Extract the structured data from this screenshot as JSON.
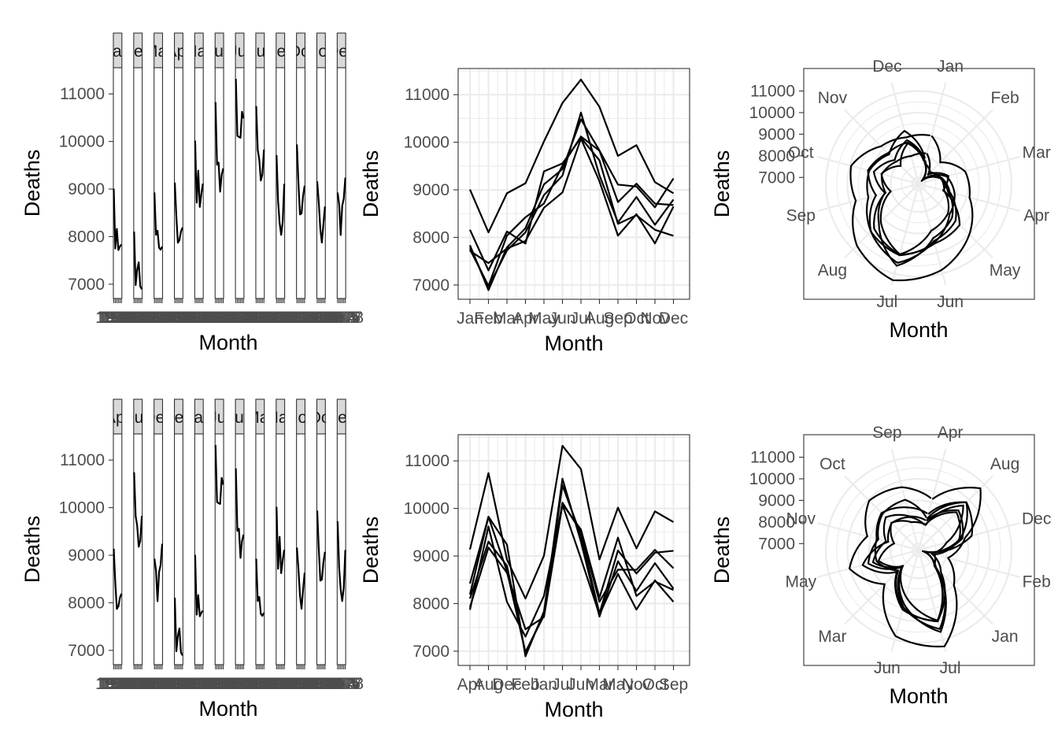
{
  "chart_data": [
    {
      "type": "line",
      "variant": "faceted-by-month",
      "ylabel": "Deaths",
      "xlabel": "Month",
      "ylim": [
        6700,
        11550
      ],
      "yticks": [
        7000,
        8000,
        9000,
        10000,
        11000
      ],
      "facets": [
        "Jan",
        "Feb",
        "Mar",
        "Apr",
        "May",
        "Jun",
        "Jul",
        "Aug",
        "Sep",
        "Oct",
        "Nov",
        "Dec"
      ],
      "x": [
        1973,
        1974,
        1975,
        1976,
        1977,
        1978
      ],
      "x_tick_labels": [
        "1973",
        "1974",
        "1975",
        "1976",
        "1977",
        "1978"
      ],
      "series": [
        {
          "values": [
            9007,
            7750,
            8162,
            7717,
            7792,
            7836
          ]
        },
        {
          "values": [
            8106,
            6981,
            7306,
            7461,
            6957,
            6892
          ]
        },
        {
          "values": [
            8928,
            8038,
            8124,
            7767,
            7726,
            7791
          ]
        },
        {
          "values": [
            9137,
            8422,
            7870,
            7925,
            8106,
            8192
          ]
        },
        {
          "values": [
            10017,
            8714,
            9387,
            8623,
            8890,
            9115
          ]
        },
        {
          "values": [
            10826,
            9512,
            9556,
            8945,
            9299,
            9434
          ]
        },
        {
          "values": [
            11317,
            10120,
            10093,
            10078,
            10625,
            10484
          ]
        },
        {
          "values": [
            10744,
            9823,
            9620,
            9179,
            9302,
            9827
          ]
        },
        {
          "values": [
            9713,
            8743,
            8285,
            8037,
            8314,
            9110
          ]
        },
        {
          "values": [
            9938,
            9129,
            8466,
            8488,
            8850,
            9070
          ]
        },
        {
          "values": [
            9161,
            8710,
            8160,
            7874,
            8265,
            8633
          ]
        },
        {
          "values": [
            8927,
            8680,
            8034,
            8647,
            8796,
            9240
          ]
        }
      ]
    },
    {
      "type": "line",
      "variant": "seasonal",
      "ylabel": "Deaths",
      "xlabel": "Month",
      "ylim": [
        6700,
        11550
      ],
      "yticks": [
        7000,
        8000,
        9000,
        10000,
        11000
      ],
      "categories": [
        "Jan",
        "Feb",
        "Mar",
        "Apr",
        "May",
        "Jun",
        "Jul",
        "Aug",
        "Sep",
        "Oct",
        "Nov",
        "Dec"
      ],
      "series": [
        {
          "values": [
            9007,
            8106,
            8928,
            9137,
            10017,
            10826,
            11317,
            10744,
            9713,
            9938,
            9161,
            8927
          ]
        },
        {
          "values": [
            7750,
            6981,
            8038,
            8422,
            8714,
            9512,
            10120,
            9823,
            8743,
            9129,
            8710,
            8680
          ]
        },
        {
          "values": [
            8162,
            7306,
            8124,
            7870,
            9387,
            9556,
            10093,
            9620,
            8285,
            8466,
            8160,
            8034
          ]
        },
        {
          "values": [
            7717,
            7461,
            7767,
            7925,
            8623,
            8945,
            10078,
            9179,
            8037,
            8488,
            7874,
            8647
          ]
        },
        {
          "values": [
            7792,
            6957,
            7726,
            8106,
            8890,
            9299,
            10625,
            9302,
            8314,
            8850,
            8265,
            8796
          ]
        },
        {
          "values": [
            7836,
            6892,
            7791,
            8192,
            9115,
            9434,
            10484,
            9827,
            9110,
            9070,
            8633,
            9240
          ]
        }
      ]
    },
    {
      "type": "line",
      "variant": "polar-seasonal",
      "ylabel": "Deaths",
      "xlabel": "Month",
      "yticks": [
        7000,
        8000,
        9000,
        10000,
        11000
      ],
      "categories": [
        "Jan",
        "Feb",
        "Mar",
        "Apr",
        "May",
        "Jun",
        "Jul",
        "Aug",
        "Sep",
        "Oct",
        "Nov",
        "Dec"
      ]
    },
    {
      "type": "line",
      "variant": "faceted-by-month-alphabetical",
      "ylabel": "Deaths",
      "xlabel": "Month",
      "ylim": [
        6700,
        11550
      ],
      "yticks": [
        7000,
        8000,
        9000,
        10000,
        11000
      ],
      "facets": [
        "Apr",
        "Aug",
        "Dec",
        "Feb",
        "Jan",
        "Jul",
        "Jun",
        "Mar",
        "May",
        "Nov",
        "Oct",
        "Sep"
      ],
      "x_tick_labels": [
        "1973",
        "1974",
        "1975",
        "1976",
        "1977",
        "1978"
      ]
    },
    {
      "type": "line",
      "variant": "seasonal-alphabetical",
      "ylabel": "Deaths",
      "xlabel": "Month",
      "ylim": [
        6700,
        11550
      ],
      "yticks": [
        7000,
        8000,
        9000,
        10000,
        11000
      ],
      "categories": [
        "Apr",
        "Aug",
        "Dec",
        "Feb",
        "Jan",
        "Jul",
        "Jun",
        "Mar",
        "May",
        "Nov",
        "Oct",
        "Sep"
      ]
    },
    {
      "type": "line",
      "variant": "polar-seasonal-alphabetical",
      "ylabel": "Deaths",
      "xlabel": "Month",
      "yticks": [
        7000,
        8000,
        9000,
        10000,
        11000
      ],
      "categories": [
        "Apr",
        "Aug",
        "Dec",
        "Feb",
        "Jan",
        "Jul",
        "Jun",
        "Mar",
        "May",
        "Nov",
        "Oct",
        "Sep"
      ]
    }
  ]
}
